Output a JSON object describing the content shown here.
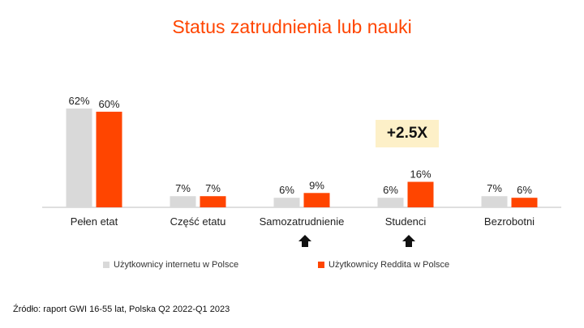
{
  "chart_data": {
    "type": "bar",
    "title": "Status zatrudnienia lub nauki",
    "categories": [
      "Pełen etat",
      "Część etatu",
      "Samozatrudnienie",
      "Studenci",
      "Bezrobotni"
    ],
    "series": [
      {
        "name": "Użytkownicy internetu w Polsce",
        "values": [
          62,
          7,
          6,
          6,
          7
        ],
        "labels": [
          "62%",
          "7%",
          "6%",
          "6%",
          "7%"
        ],
        "color": "#d9d9d9"
      },
      {
        "name": "Użytkownicy Reddita w Polsce",
        "values": [
          60,
          7,
          9,
          16,
          6
        ],
        "labels": [
          "60%",
          "7%",
          "9%",
          "16%",
          "6%"
        ],
        "color": "#ff4500"
      }
    ],
    "ylim": [
      0,
      62
    ],
    "xlabel": "",
    "ylabel": "",
    "grid": false,
    "legend": "bottom",
    "annotations": {
      "callout": "+2.5X",
      "up_arrows_under": [
        "Samozatrudnienie",
        "Studenci"
      ]
    }
  },
  "source": "Źródło: raport GWI 16-55 lat, Polska Q2 2022-Q1 2023"
}
